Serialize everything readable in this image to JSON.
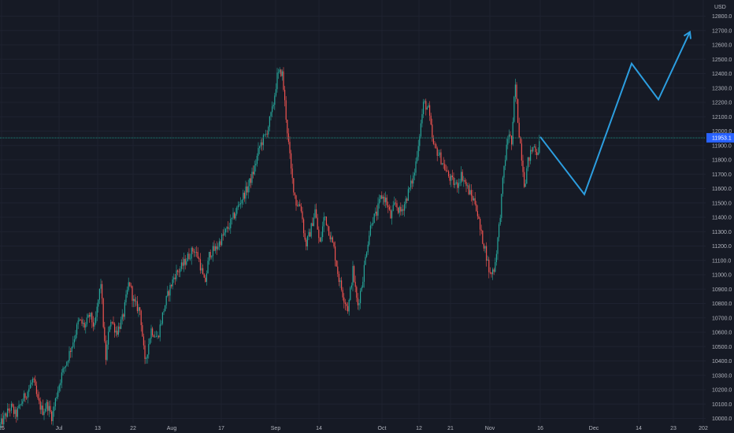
{
  "chart_data": {
    "type": "candlestick",
    "y_axis": {
      "unit": "USD",
      "ticks": [
        10000,
        10100,
        10200,
        10300,
        10400,
        10500,
        10600,
        10700,
        10800,
        10900,
        11000,
        11100,
        11200,
        11300,
        11400,
        11500,
        11600,
        11700,
        11800,
        11900,
        12000,
        12100,
        12200,
        12300,
        12400,
        12500,
        12600,
        12700,
        12800
      ],
      "tick_labels": [
        "10000.0",
        "10100.0",
        "10200.0",
        "10300.0",
        "10400.0",
        "10500.0",
        "10600.0",
        "10700.0",
        "10800.0",
        "10900.0",
        "11000.0",
        "11100.0",
        "11200.0",
        "11300.0",
        "11400.0",
        "11500.0",
        "11600.0",
        "11700.0",
        "11800.0",
        "11900.0",
        "12000.0",
        "12100.0",
        "12200.0",
        "12300.0",
        "12400.0",
        "12500.0",
        "12600.0",
        "12700.0",
        "12800.0"
      ],
      "range": [
        9970,
        12885
      ]
    },
    "x_axis": {
      "ticks": [
        "25",
        "Jul",
        "13",
        "22",
        "Aug",
        "17",
        "Sep",
        "14",
        "Oct",
        "12",
        "21",
        "Nov",
        "16",
        "Dec",
        "14",
        "23",
        "202"
      ]
    },
    "current_price": {
      "label": "11953.1",
      "value": 11953.1
    },
    "path_anchors": [
      {
        "x": 0,
        "y": 9950
      },
      {
        "x": 8,
        "y": 10030
      },
      {
        "x": 14,
        "y": 10080
      },
      {
        "x": 20,
        "y": 10020
      },
      {
        "x": 28,
        "y": 10120
      },
      {
        "x": 36,
        "y": 10200
      },
      {
        "x": 42,
        "y": 10270
      },
      {
        "x": 48,
        "y": 10120
      },
      {
        "x": 54,
        "y": 10050
      },
      {
        "x": 60,
        "y": 10100
      },
      {
        "x": 66,
        "y": 10010
      },
      {
        "x": 72,
        "y": 10170
      },
      {
        "x": 78,
        "y": 10300
      },
      {
        "x": 86,
        "y": 10420
      },
      {
        "x": 94,
        "y": 10560
      },
      {
        "x": 100,
        "y": 10680
      },
      {
        "x": 108,
        "y": 10640
      },
      {
        "x": 114,
        "y": 10720
      },
      {
        "x": 120,
        "y": 10630
      },
      {
        "x": 128,
        "y": 10950
      },
      {
        "x": 134,
        "y": 10400
      },
      {
        "x": 140,
        "y": 10700
      },
      {
        "x": 148,
        "y": 10600
      },
      {
        "x": 156,
        "y": 10700
      },
      {
        "x": 164,
        "y": 10960
      },
      {
        "x": 170,
        "y": 10800
      },
      {
        "x": 178,
        "y": 10750
      },
      {
        "x": 184,
        "y": 10380
      },
      {
        "x": 192,
        "y": 10620
      },
      {
        "x": 200,
        "y": 10560
      },
      {
        "x": 208,
        "y": 10760
      },
      {
        "x": 214,
        "y": 10880
      },
      {
        "x": 222,
        "y": 11000
      },
      {
        "x": 230,
        "y": 11050
      },
      {
        "x": 238,
        "y": 11120
      },
      {
        "x": 246,
        "y": 11180
      },
      {
        "x": 252,
        "y": 11120
      },
      {
        "x": 260,
        "y": 10930
      },
      {
        "x": 266,
        "y": 11150
      },
      {
        "x": 274,
        "y": 11180
      },
      {
        "x": 282,
        "y": 11260
      },
      {
        "x": 290,
        "y": 11330
      },
      {
        "x": 298,
        "y": 11420
      },
      {
        "x": 306,
        "y": 11520
      },
      {
        "x": 314,
        "y": 11600
      },
      {
        "x": 322,
        "y": 11720
      },
      {
        "x": 330,
        "y": 11900
      },
      {
        "x": 338,
        "y": 11980
      },
      {
        "x": 346,
        "y": 12150
      },
      {
        "x": 352,
        "y": 12380
      },
      {
        "x": 358,
        "y": 12420
      },
      {
        "x": 364,
        "y": 12050
      },
      {
        "x": 370,
        "y": 11700
      },
      {
        "x": 376,
        "y": 11500
      },
      {
        "x": 382,
        "y": 11480
      },
      {
        "x": 388,
        "y": 11200
      },
      {
        "x": 394,
        "y": 11300
      },
      {
        "x": 400,
        "y": 11450
      },
      {
        "x": 406,
        "y": 11200
      },
      {
        "x": 412,
        "y": 11420
      },
      {
        "x": 418,
        "y": 11300
      },
      {
        "x": 424,
        "y": 11180
      },
      {
        "x": 430,
        "y": 10980
      },
      {
        "x": 436,
        "y": 10850
      },
      {
        "x": 442,
        "y": 10760
      },
      {
        "x": 448,
        "y": 11030
      },
      {
        "x": 454,
        "y": 10780
      },
      {
        "x": 460,
        "y": 10950
      },
      {
        "x": 466,
        "y": 11200
      },
      {
        "x": 472,
        "y": 11380
      },
      {
        "x": 478,
        "y": 11420
      },
      {
        "x": 484,
        "y": 11550
      },
      {
        "x": 490,
        "y": 11520
      },
      {
        "x": 496,
        "y": 11400
      },
      {
        "x": 502,
        "y": 11500
      },
      {
        "x": 508,
        "y": 11430
      },
      {
        "x": 514,
        "y": 11500
      },
      {
        "x": 520,
        "y": 11600
      },
      {
        "x": 526,
        "y": 11700
      },
      {
        "x": 532,
        "y": 11950
      },
      {
        "x": 538,
        "y": 12200
      },
      {
        "x": 544,
        "y": 12150
      },
      {
        "x": 550,
        "y": 11900
      },
      {
        "x": 556,
        "y": 11850
      },
      {
        "x": 562,
        "y": 11780
      },
      {
        "x": 568,
        "y": 11700
      },
      {
        "x": 574,
        "y": 11650
      },
      {
        "x": 580,
        "y": 11620
      },
      {
        "x": 586,
        "y": 11700
      },
      {
        "x": 592,
        "y": 11620
      },
      {
        "x": 598,
        "y": 11550
      },
      {
        "x": 604,
        "y": 11500
      },
      {
        "x": 610,
        "y": 11300
      },
      {
        "x": 616,
        "y": 11180
      },
      {
        "x": 622,
        "y": 11000
      },
      {
        "x": 628,
        "y": 11050
      },
      {
        "x": 634,
        "y": 11350
      },
      {
        "x": 640,
        "y": 11750
      },
      {
        "x": 646,
        "y": 12000
      },
      {
        "x": 650,
        "y": 11900
      },
      {
        "x": 654,
        "y": 12350
      },
      {
        "x": 658,
        "y": 12050
      },
      {
        "x": 662,
        "y": 11850
      },
      {
        "x": 666,
        "y": 11620
      },
      {
        "x": 670,
        "y": 11780
      },
      {
        "x": 674,
        "y": 11850
      },
      {
        "x": 678,
        "y": 11900
      },
      {
        "x": 682,
        "y": 11850
      },
      {
        "x": 686,
        "y": 11930
      }
    ],
    "projection": [
      {
        "x": 686,
        "y": 11960
      },
      {
        "x": 742,
        "y": 11560
      },
      {
        "x": 802,
        "y": 12470
      },
      {
        "x": 836,
        "y": 12220
      },
      {
        "x": 876,
        "y": 12690
      }
    ],
    "colors": {
      "background": "#161a25",
      "grid": "#1e2230",
      "up": "#26a69a",
      "down": "#ef5350",
      "projection": "#2c9ee0",
      "price_line": "#1e8f82",
      "price_tag": "#2962ff",
      "axis_text": "#b2b5be"
    }
  }
}
